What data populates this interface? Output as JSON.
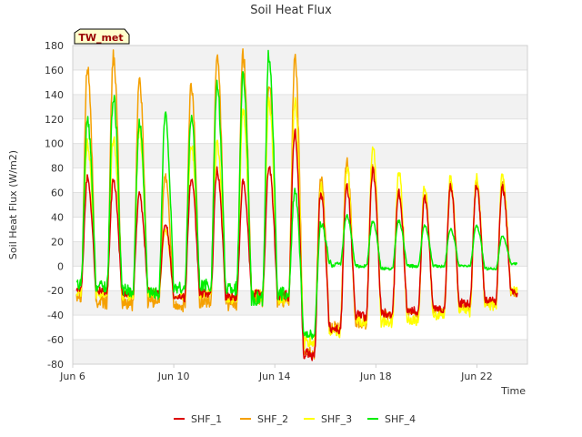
{
  "chart_data": {
    "type": "line",
    "title": "Soil Heat Flux",
    "xlabel": "Time",
    "ylabel": "Soil Heat Flux (W/m2)",
    "badge": "TW_met",
    "xlim": [
      6.0,
      24.0
    ],
    "ylim": [
      -80,
      180
    ],
    "x_ticks": [
      {
        "value": 6,
        "label": "Jun 6"
      },
      {
        "value": 10,
        "label": "Jun 10"
      },
      {
        "value": 14,
        "label": "Jun 14"
      },
      {
        "value": 18,
        "label": "Jun 18"
      },
      {
        "value": 22,
        "label": "Jun 22"
      }
    ],
    "y_ticks": [
      -80,
      -60,
      -40,
      -20,
      0,
      20,
      40,
      60,
      80,
      100,
      120,
      140,
      160,
      180
    ],
    "x_range_data": [
      6.15,
      23.6
    ],
    "series": [
      {
        "name": "SHF_1",
        "color": "#dd0000",
        "peaks": [
          72,
          70,
          58,
          35,
          70,
          78,
          68,
          82,
          110,
          60,
          65,
          78,
          60,
          55,
          65,
          65,
          65
        ],
        "troughs": [
          -18,
          -20,
          -22,
          -20,
          -25,
          -22,
          -25,
          -22,
          -24,
          -72,
          -50,
          -40,
          -38,
          -36,
          -35,
          -30,
          -28,
          -22
        ]
      },
      {
        "name": "SHF_2",
        "color": "#f5a000",
        "peaks": [
          162,
          172,
          152,
          73,
          147,
          173,
          171,
          150,
          167,
          72,
          86,
          80,
          62,
          58,
          66,
          67,
          66
        ],
        "troughs": [
          -22,
          -28,
          -30,
          -28,
          -32,
          -28,
          -30,
          -26,
          -28,
          -70,
          -50,
          -46,
          -40,
          -38,
          -36,
          -32,
          -30,
          -22
        ]
      },
      {
        "name": "SHF_3",
        "color": "#ffff00",
        "peaks": [
          100,
          105,
          110,
          30,
          100,
          100,
          125,
          135,
          135,
          65,
          80,
          97,
          78,
          65,
          73,
          73,
          74
        ],
        "troughs": [
          -20,
          -22,
          -24,
          -22,
          -25,
          -22,
          -26,
          -24,
          -26,
          -62,
          -52,
          -45,
          -45,
          -44,
          -40,
          -36,
          -32,
          -20
        ]
      },
      {
        "name": "SHF_4",
        "color": "#00ee00",
        "peaks": [
          119,
          139,
          116,
          122,
          121,
          146,
          156,
          174,
          62,
          35,
          41,
          36,
          37,
          33,
          30,
          33,
          24
        ],
        "troughs": [
          -14,
          -16,
          -20,
          -22,
          -18,
          -16,
          -18,
          -26,
          -24,
          -55,
          2,
          0,
          -2,
          0,
          0,
          0,
          -2,
          2
        ]
      }
    ]
  },
  "legend": {
    "items": [
      {
        "label": "SHF_1",
        "color": "#dd0000"
      },
      {
        "label": "SHF_2",
        "color": "#f5a000"
      },
      {
        "label": "SHF_3",
        "color": "#ffff00"
      },
      {
        "label": "SHF_4",
        "color": "#00ee00"
      }
    ]
  }
}
